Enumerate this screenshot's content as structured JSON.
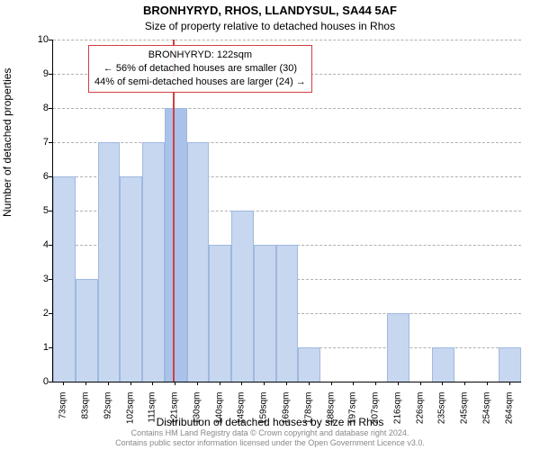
{
  "title_main": "BRONHYRYD, RHOS, LLANDYSUL, SA44 5AF",
  "title_sub": "Size of property relative to detached houses in Rhos",
  "y_axis_label": "Number of detached properties",
  "x_axis_label": "Distribution of detached houses by size in Rhos",
  "chart": {
    "type": "histogram",
    "ylim": [
      0,
      10
    ],
    "ytick_step": 1,
    "background_color": "#ffffff",
    "grid_color": "#b0b0b0",
    "bar_fill": "#c7d7f0",
    "bar_stroke": "#9fb8e0",
    "highlight_fill": "#aac2ea",
    "marker_color": "#d04040",
    "x_categories": [
      "73sqm",
      "83sqm",
      "92sqm",
      "102sqm",
      "111sqm",
      "121sqm",
      "130sqm",
      "140sqm",
      "149sqm",
      "159sqm",
      "169sqm",
      "178sqm",
      "188sqm",
      "197sqm",
      "207sqm",
      "216sqm",
      "226sqm",
      "235sqm",
      "245sqm",
      "254sqm",
      "264sqm"
    ],
    "values": [
      6,
      3,
      7,
      6,
      7,
      8,
      7,
      4,
      5,
      4,
      4,
      1,
      0,
      0,
      0,
      2,
      0,
      1,
      0,
      0,
      1
    ],
    "highlight_index": 5,
    "marker_position_ratio": 0.255,
    "bar_width_ratio": 1.0
  },
  "annotation": {
    "line1": "BRONHYRYD: 122sqm",
    "line2": "← 56% of detached houses are smaller (30)",
    "line3": "44% of semi-detached houses are larger (24) →",
    "box_border": "#d04040",
    "fontsize": 11
  },
  "footer_line1": "Contains HM Land Registry data © Crown copyright and database right 2024.",
  "footer_line2": "Contains public sector information licensed under the Open Government Licence v3.0."
}
